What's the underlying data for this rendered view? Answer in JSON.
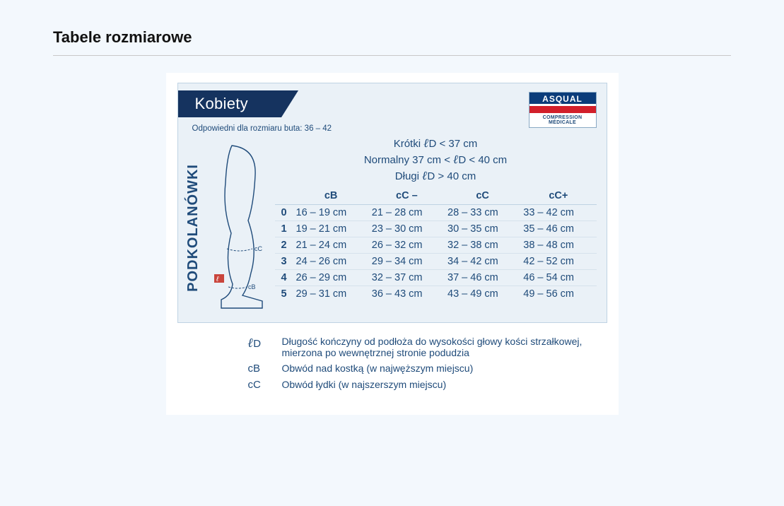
{
  "title": "Tabele rozmiarowe",
  "tab": "Kobiety",
  "badge": {
    "top": "ASQUAL",
    "bottom": "COMPRESSION MÉDICALE"
  },
  "shoe_note": "Odpowiedni dla rozmiaru buta: 36 – 42",
  "sidelabel": "PODKOLANÓWKI",
  "lengths": {
    "short_a": "Krótki ",
    "short_b": "D < 37 cm",
    "normal_a": "Normalny 37 cm < ",
    "normal_b": "D < 40 cm",
    "long_a": "Długi ",
    "long_b": "D > 40 cm"
  },
  "table": {
    "headers": [
      "",
      "cB",
      "cC –",
      "cC",
      "cC+"
    ],
    "rows": [
      [
        "0",
        "16 – 19 cm",
        "21 – 28 cm",
        "28 – 33 cm",
        "33 – 42 cm"
      ],
      [
        "1",
        "19 – 21 cm",
        "23 – 30 cm",
        "30 – 35 cm",
        "35 – 46 cm"
      ],
      [
        "2",
        "21 – 24 cm",
        "26 – 32 cm",
        "32 – 38 cm",
        "38 – 48 cm"
      ],
      [
        "3",
        "24 – 26 cm",
        "29 – 34 cm",
        "34 – 42 cm",
        "42 – 52 cm"
      ],
      [
        "4",
        "26 – 29 cm",
        "32 – 37 cm",
        "37 – 46 cm",
        "46 – 54 cm"
      ],
      [
        "5",
        "29 – 31 cm",
        "36 – 43 cm",
        "43 – 49 cm",
        "49 – 56 cm"
      ]
    ]
  },
  "legend": {
    "lD_sym": "D",
    "lD_txt": "Długość kończyny od podłoża do wysokości głowy kości strzałkowej, mierzona po wewnętrznej stronie podudzia",
    "cB_sym": "cB",
    "cB_txt": "Obwód nad kostką (w najwęższym miejscu)",
    "cC_sym": "cC",
    "cC_txt": "Obwód łydki (w najszerszym miejscu)"
  },
  "colors": {
    "page_bg": "#f3f8fd",
    "card_bg": "#ffffff",
    "panel_bg": "#eaf1f7",
    "border": "#bfd3e3",
    "text": "#1f4b7a",
    "tab": "#15335f",
    "badge_blue": "#0b3c7a",
    "badge_red": "#d21f2a"
  }
}
